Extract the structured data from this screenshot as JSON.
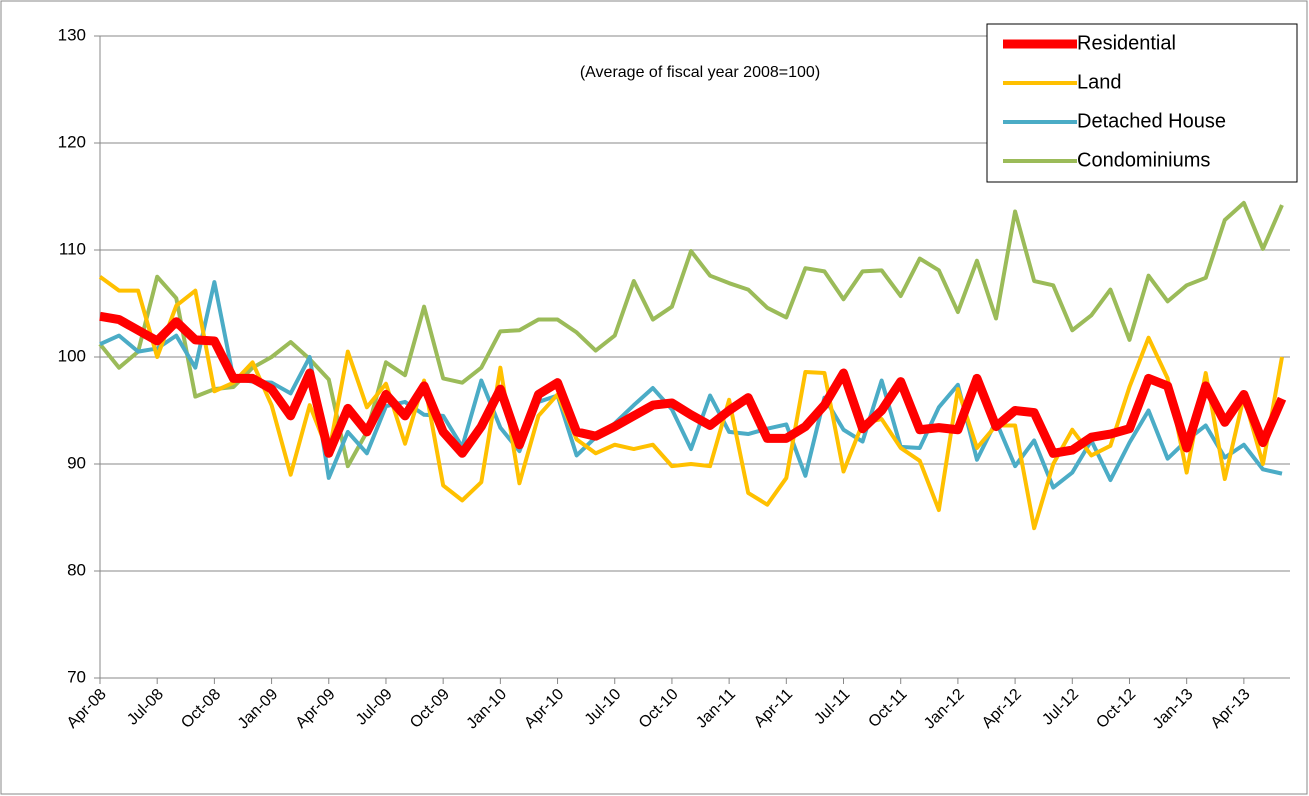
{
  "chart_data": {
    "type": "line",
    "annotation": "(Average of fiscal year 2008=100)",
    "categories": [
      "Apr-08",
      null,
      null,
      "Jul-08",
      null,
      null,
      "Oct-08",
      null,
      null,
      "Jan-09",
      null,
      null,
      "Apr-09",
      null,
      null,
      "Jul-09",
      null,
      null,
      "Oct-09",
      null,
      null,
      "Jan-10",
      null,
      null,
      "Apr-10",
      null,
      null,
      "Jul-10",
      null,
      null,
      "Oct-10",
      null,
      null,
      "Jan-11",
      null,
      null,
      "Apr-11",
      null,
      null,
      "Jul-11",
      null,
      null,
      "Oct-11",
      null,
      null,
      "Jan-12",
      null,
      null,
      "Apr-12",
      null,
      null,
      "Jul-12",
      null,
      null,
      "Oct-12",
      null,
      null,
      "Jan-13",
      null,
      null,
      "Apr-13",
      null,
      null
    ],
    "series": [
      {
        "name": "Residential",
        "color": "#ff0000",
        "values": [
          103.8,
          103.5,
          102.5,
          101.5,
          103.3,
          101.6,
          101.5,
          98.0,
          98.0,
          97.0,
          94.5,
          98.5,
          91.0,
          95.2,
          93.0,
          96.5,
          94.5,
          97.3,
          93.0,
          91.0,
          93.5,
          97.0,
          91.8,
          96.5,
          97.6,
          93.0,
          92.6,
          93.5,
          94.5,
          95.5,
          95.7,
          94.6,
          93.6,
          95.0,
          96.2,
          92.4,
          92.4,
          93.5,
          95.5,
          98.5,
          93.3,
          95.0,
          97.7,
          93.2,
          93.4,
          93.2,
          98.0,
          93.5,
          95.0,
          94.8,
          91.0,
          91.3,
          92.5,
          92.8,
          93.3,
          98.0,
          97.3,
          91.5,
          97.3,
          93.9,
          96.5,
          92.0,
          96.1
        ]
      },
      {
        "name": "Land",
        "color": "#ffc000",
        "values": [
          107.5,
          106.2,
          106.2,
          100.0,
          104.8,
          106.2,
          96.8,
          97.6,
          99.5,
          95.5,
          89.0,
          95.5,
          91.0,
          100.5,
          95.3,
          97.5,
          91.9,
          97.8,
          88.0,
          86.6,
          88.3,
          99.0,
          88.2,
          94.5,
          96.5,
          92.3,
          91.0,
          91.8,
          91.4,
          91.8,
          89.8,
          90.0,
          89.8,
          96.0,
          87.3,
          86.2,
          88.7,
          98.6,
          98.5,
          89.3,
          93.8,
          94.2,
          91.5,
          90.3,
          85.7,
          97.0,
          91.5,
          93.6,
          93.6,
          84.0,
          90.0,
          93.2,
          90.8,
          91.7,
          97.2,
          101.8,
          98.0,
          89.2,
          98.5,
          88.6,
          96.3,
          90.0,
          100.0
        ]
      },
      {
        "name": "Detached House",
        "color": "#4bacc6",
        "values": [
          101.2,
          102.0,
          100.5,
          100.8,
          102.0,
          99.0,
          107.0,
          98.0,
          97.7,
          97.6,
          96.6,
          100.0,
          88.7,
          93.0,
          91.0,
          95.4,
          95.8,
          94.6,
          94.5,
          91.6,
          97.8,
          93.4,
          91.2,
          95.8,
          96.4,
          90.8,
          92.5,
          93.8,
          95.5,
          97.1,
          95.1,
          91.4,
          96.4,
          93.0,
          92.8,
          93.3,
          93.7,
          88.9,
          96.2,
          93.2,
          92.1,
          97.8,
          91.6,
          91.5,
          95.3,
          97.4,
          90.4,
          94.0,
          89.8,
          92.2,
          87.8,
          89.2,
          92.2,
          88.5,
          92.0,
          95.0,
          90.5,
          92.2,
          93.6,
          90.6,
          91.8,
          89.5,
          89.1
        ]
      },
      {
        "name": "Condominiums",
        "color": "#9bbb59",
        "values": [
          101.2,
          99.0,
          100.5,
          107.5,
          105.5,
          96.3,
          97.0,
          97.2,
          99.0,
          100.0,
          101.4,
          99.8,
          97.9,
          89.8,
          93.0,
          99.5,
          98.3,
          104.7,
          98.0,
          97.6,
          99.0,
          102.4,
          102.5,
          103.5,
          103.5,
          102.3,
          100.6,
          102.0,
          107.1,
          103.5,
          104.7,
          109.9,
          107.6,
          106.9,
          106.3,
          104.6,
          103.7,
          108.3,
          108.0,
          105.4,
          108.0,
          108.1,
          105.7,
          109.2,
          108.1,
          104.2,
          109.0,
          103.6,
          113.6,
          107.1,
          106.7,
          102.5,
          103.9,
          106.3,
          101.6,
          107.6,
          105.2,
          106.7,
          107.4,
          112.8,
          114.4,
          110.1,
          114.2
        ]
      }
    ],
    "ylim": [
      70,
      130
    ],
    "yticks": [
      70,
      80,
      90,
      100,
      110,
      120,
      130
    ],
    "grid": true,
    "legend": "top-right"
  }
}
